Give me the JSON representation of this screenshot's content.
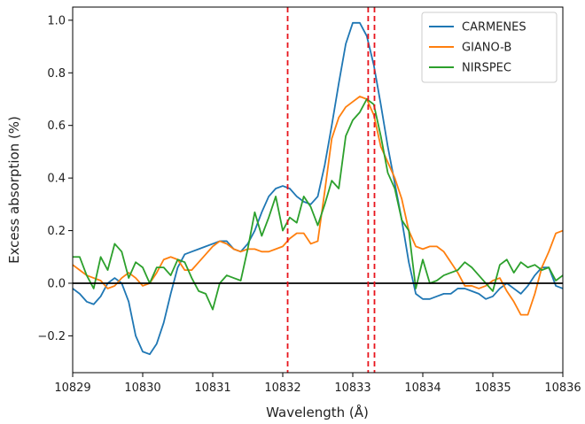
{
  "chart_data": {
    "type": "line",
    "title": "",
    "xlabel": "Wavelength (Å)",
    "ylabel": "Excess absorption (%)",
    "xlim": [
      10829,
      10836
    ],
    "ylim": [
      -0.34,
      1.05
    ],
    "xticks": [
      "10829",
      "10830",
      "10831",
      "10832",
      "10833",
      "10834",
      "10835",
      "10836"
    ],
    "yticks": [
      "−0.2",
      "0.0",
      "0.2",
      "0.4",
      "0.6",
      "0.8",
      "1.0"
    ],
    "grid": false,
    "legend": "top-right",
    "zero_line": 0,
    "vlines": [
      10832.07,
      10833.22,
      10833.31
    ],
    "series": [
      {
        "name": "CARMENES",
        "color": "#1f77b4",
        "points": [
          [
            10829.0,
            -0.02
          ],
          [
            10829.1,
            -0.04
          ],
          [
            10829.2,
            -0.07
          ],
          [
            10829.3,
            -0.08
          ],
          [
            10829.4,
            -0.05
          ],
          [
            10829.5,
            0.0
          ],
          [
            10829.6,
            0.02
          ],
          [
            10829.7,
            0.0
          ],
          [
            10829.8,
            -0.07
          ],
          [
            10829.9,
            -0.2
          ],
          [
            10830.0,
            -0.26
          ],
          [
            10830.1,
            -0.27
          ],
          [
            10830.2,
            -0.23
          ],
          [
            10830.3,
            -0.15
          ],
          [
            10830.4,
            -0.04
          ],
          [
            10830.5,
            0.06
          ],
          [
            10830.6,
            0.11
          ],
          [
            10830.7,
            0.12
          ],
          [
            10830.8,
            0.13
          ],
          [
            10830.9,
            0.14
          ],
          [
            10831.0,
            0.15
          ],
          [
            10831.1,
            0.16
          ],
          [
            10831.2,
            0.16
          ],
          [
            10831.3,
            0.13
          ],
          [
            10831.4,
            0.12
          ],
          [
            10831.5,
            0.15
          ],
          [
            10831.6,
            0.2
          ],
          [
            10831.7,
            0.27
          ],
          [
            10831.8,
            0.33
          ],
          [
            10831.9,
            0.36
          ],
          [
            10832.0,
            0.37
          ],
          [
            10832.1,
            0.36
          ],
          [
            10832.2,
            0.33
          ],
          [
            10832.3,
            0.31
          ],
          [
            10832.4,
            0.3
          ],
          [
            10832.5,
            0.33
          ],
          [
            10832.6,
            0.45
          ],
          [
            10832.7,
            0.6
          ],
          [
            10832.8,
            0.76
          ],
          [
            10832.9,
            0.91
          ],
          [
            10833.0,
            0.99
          ],
          [
            10833.1,
            0.99
          ],
          [
            10833.2,
            0.94
          ],
          [
            10833.3,
            0.83
          ],
          [
            10833.4,
            0.68
          ],
          [
            10833.5,
            0.52
          ],
          [
            10833.6,
            0.38
          ],
          [
            10833.7,
            0.24
          ],
          [
            10833.8,
            0.08
          ],
          [
            10833.9,
            -0.04
          ],
          [
            10834.0,
            -0.06
          ],
          [
            10834.1,
            -0.06
          ],
          [
            10834.2,
            -0.05
          ],
          [
            10834.3,
            -0.04
          ],
          [
            10834.4,
            -0.04
          ],
          [
            10834.5,
            -0.02
          ],
          [
            10834.6,
            -0.02
          ],
          [
            10834.7,
            -0.03
          ],
          [
            10834.8,
            -0.04
          ],
          [
            10834.9,
            -0.06
          ],
          [
            10835.0,
            -0.05
          ],
          [
            10835.1,
            -0.02
          ],
          [
            10835.2,
            0.0
          ],
          [
            10835.3,
            -0.02
          ],
          [
            10835.4,
            -0.04
          ],
          [
            10835.5,
            -0.01
          ],
          [
            10835.6,
            0.03
          ],
          [
            10835.7,
            0.06
          ],
          [
            10835.8,
            0.06
          ],
          [
            10835.9,
            -0.01
          ],
          [
            10836.0,
            -0.02
          ]
        ]
      },
      {
        "name": "GIANO-B",
        "color": "#ff7f0e",
        "points": [
          [
            10829.0,
            0.07
          ],
          [
            10829.1,
            0.05
          ],
          [
            10829.2,
            0.03
          ],
          [
            10829.3,
            0.02
          ],
          [
            10829.4,
            0.01
          ],
          [
            10829.5,
            -0.02
          ],
          [
            10829.6,
            -0.01
          ],
          [
            10829.7,
            0.02
          ],
          [
            10829.8,
            0.04
          ],
          [
            10829.9,
            0.02
          ],
          [
            10830.0,
            -0.01
          ],
          [
            10830.1,
            0.0
          ],
          [
            10830.2,
            0.04
          ],
          [
            10830.3,
            0.09
          ],
          [
            10830.4,
            0.1
          ],
          [
            10830.5,
            0.09
          ],
          [
            10830.6,
            0.05
          ],
          [
            10830.7,
            0.05
          ],
          [
            10830.8,
            0.08
          ],
          [
            10830.9,
            0.11
          ],
          [
            10831.0,
            0.14
          ],
          [
            10831.1,
            0.16
          ],
          [
            10831.2,
            0.15
          ],
          [
            10831.3,
            0.13
          ],
          [
            10831.4,
            0.12
          ],
          [
            10831.5,
            0.13
          ],
          [
            10831.6,
            0.13
          ],
          [
            10831.7,
            0.12
          ],
          [
            10831.8,
            0.12
          ],
          [
            10831.9,
            0.13
          ],
          [
            10832.0,
            0.14
          ],
          [
            10832.1,
            0.17
          ],
          [
            10832.2,
            0.19
          ],
          [
            10832.3,
            0.19
          ],
          [
            10832.4,
            0.15
          ],
          [
            10832.5,
            0.16
          ],
          [
            10832.6,
            0.35
          ],
          [
            10832.7,
            0.55
          ],
          [
            10832.8,
            0.63
          ],
          [
            10832.9,
            0.67
          ],
          [
            10833.0,
            0.69
          ],
          [
            10833.1,
            0.71
          ],
          [
            10833.2,
            0.7
          ],
          [
            10833.3,
            0.64
          ],
          [
            10833.4,
            0.52
          ],
          [
            10833.5,
            0.46
          ],
          [
            10833.6,
            0.4
          ],
          [
            10833.7,
            0.32
          ],
          [
            10833.8,
            0.2
          ],
          [
            10833.9,
            0.14
          ],
          [
            10834.0,
            0.13
          ],
          [
            10834.1,
            0.14
          ],
          [
            10834.2,
            0.14
          ],
          [
            10834.3,
            0.12
          ],
          [
            10834.4,
            0.08
          ],
          [
            10834.5,
            0.04
          ],
          [
            10834.6,
            -0.01
          ],
          [
            10834.7,
            -0.01
          ],
          [
            10834.8,
            -0.02
          ],
          [
            10834.9,
            -0.01
          ],
          [
            10835.0,
            0.01
          ],
          [
            10835.1,
            0.02
          ],
          [
            10835.2,
            -0.03
          ],
          [
            10835.3,
            -0.07
          ],
          [
            10835.4,
            -0.12
          ],
          [
            10835.5,
            -0.12
          ],
          [
            10835.6,
            -0.04
          ],
          [
            10835.7,
            0.06
          ],
          [
            10835.8,
            0.12
          ],
          [
            10835.9,
            0.19
          ],
          [
            10836.0,
            0.2
          ]
        ]
      },
      {
        "name": "NIRSPEC",
        "color": "#2ca02c",
        "points": [
          [
            10829.0,
            0.1
          ],
          [
            10829.1,
            0.1
          ],
          [
            10829.2,
            0.03
          ],
          [
            10829.3,
            -0.02
          ],
          [
            10829.4,
            0.1
          ],
          [
            10829.5,
            0.05
          ],
          [
            10829.6,
            0.15
          ],
          [
            10829.7,
            0.12
          ],
          [
            10829.8,
            0.02
          ],
          [
            10829.9,
            0.08
          ],
          [
            10830.0,
            0.06
          ],
          [
            10830.1,
            0.0
          ],
          [
            10830.2,
            0.06
          ],
          [
            10830.3,
            0.06
          ],
          [
            10830.4,
            0.03
          ],
          [
            10830.5,
            0.09
          ],
          [
            10830.6,
            0.08
          ],
          [
            10830.7,
            0.02
          ],
          [
            10830.8,
            -0.03
          ],
          [
            10830.9,
            -0.04
          ],
          [
            10831.0,
            -0.1
          ],
          [
            10831.1,
            0.0
          ],
          [
            10831.2,
            0.03
          ],
          [
            10831.3,
            0.02
          ],
          [
            10831.4,
            0.01
          ],
          [
            10831.5,
            0.13
          ],
          [
            10831.6,
            0.27
          ],
          [
            10831.7,
            0.18
          ],
          [
            10831.8,
            0.25
          ],
          [
            10831.9,
            0.33
          ],
          [
            10832.0,
            0.2
          ],
          [
            10832.1,
            0.25
          ],
          [
            10832.2,
            0.23
          ],
          [
            10832.3,
            0.33
          ],
          [
            10832.4,
            0.29
          ],
          [
            10832.5,
            0.22
          ],
          [
            10832.6,
            0.3
          ],
          [
            10832.7,
            0.39
          ],
          [
            10832.8,
            0.36
          ],
          [
            10832.9,
            0.56
          ],
          [
            10833.0,
            0.62
          ],
          [
            10833.1,
            0.65
          ],
          [
            10833.2,
            0.7
          ],
          [
            10833.3,
            0.68
          ],
          [
            10833.4,
            0.56
          ],
          [
            10833.5,
            0.42
          ],
          [
            10833.6,
            0.36
          ],
          [
            10833.7,
            0.24
          ],
          [
            10833.8,
            0.2
          ],
          [
            10833.9,
            -0.02
          ],
          [
            10834.0,
            0.09
          ],
          [
            10834.1,
            0.0
          ],
          [
            10834.2,
            0.01
          ],
          [
            10834.3,
            0.03
          ],
          [
            10834.4,
            0.04
          ],
          [
            10834.5,
            0.05
          ],
          [
            10834.6,
            0.08
          ],
          [
            10834.7,
            0.06
          ],
          [
            10834.8,
            0.03
          ],
          [
            10834.9,
            0.0
          ],
          [
            10835.0,
            -0.03
          ],
          [
            10835.1,
            0.07
          ],
          [
            10835.2,
            0.09
          ],
          [
            10835.3,
            0.04
          ],
          [
            10835.4,
            0.08
          ],
          [
            10835.5,
            0.06
          ],
          [
            10835.6,
            0.07
          ],
          [
            10835.7,
            0.05
          ],
          [
            10835.8,
            0.06
          ],
          [
            10835.9,
            0.01
          ],
          [
            10836.0,
            0.03
          ]
        ]
      }
    ]
  }
}
